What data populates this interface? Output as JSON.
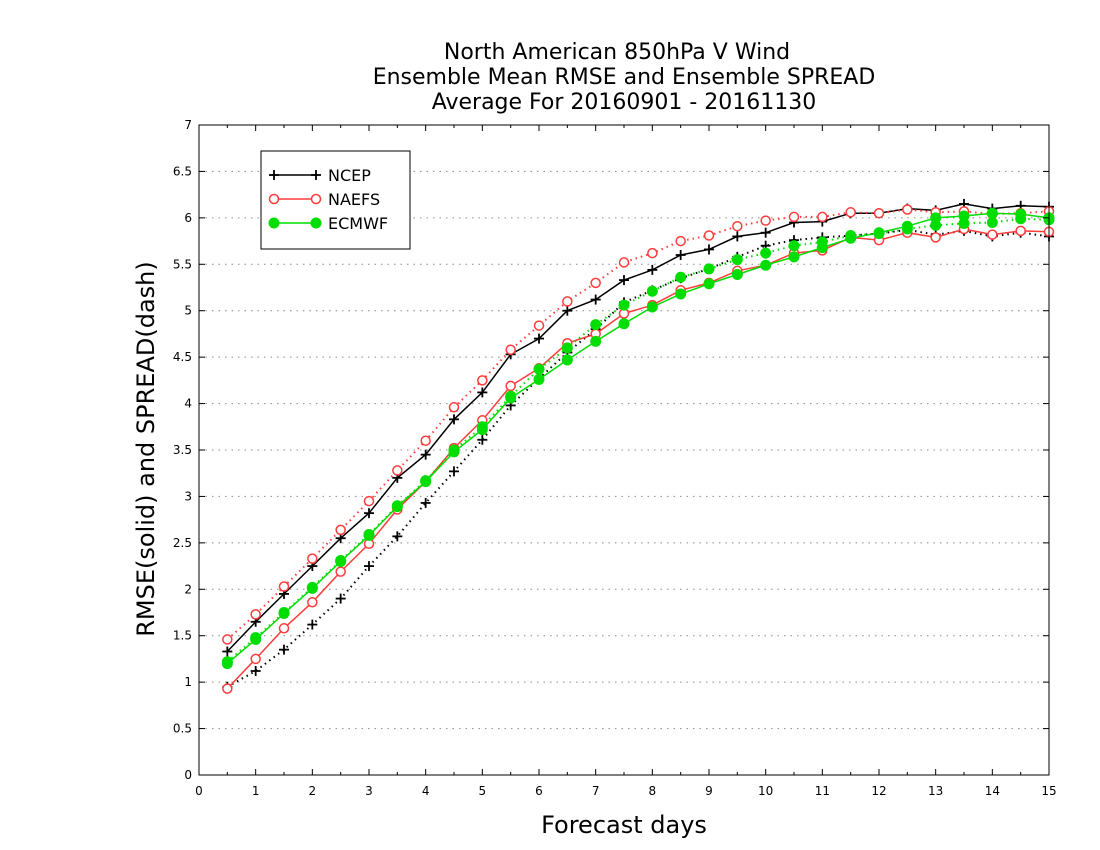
{
  "chart_data": {
    "type": "line",
    "title_lines": [
      "North American 850hPa V Wind",
      "Ensemble Mean RMSE and Ensemble SPREAD",
      "Average For 20160901 - 20161130"
    ],
    "xlabel": "Forecast days",
    "ylabel": "RMSE(solid) and SPREAD(dash)",
    "xlim": [
      0,
      15
    ],
    "ylim": [
      0,
      7
    ],
    "x_ticks": [
      "0",
      "1",
      "2",
      "3",
      "4",
      "5",
      "6",
      "7",
      "8",
      "9",
      "10",
      "11",
      "12",
      "13",
      "14",
      "15"
    ],
    "y_ticks": [
      "0",
      "0.5",
      "1",
      "1.5",
      "2",
      "2.5",
      "3",
      "3.5",
      "4",
      "4.5",
      "5",
      "5.5",
      "6",
      "6.5",
      "7"
    ],
    "grid": "horizontal dotted",
    "legend_position": "top-left",
    "x": [
      0.5,
      1,
      1.5,
      2,
      2.5,
      3,
      3.5,
      4,
      4.5,
      5,
      5.5,
      6,
      6.5,
      7,
      7.5,
      8,
      8.5,
      9,
      9.5,
      10,
      10.5,
      11,
      11.5,
      12,
      12.5,
      13,
      13.5,
      14,
      14.5,
      15
    ],
    "series": [
      {
        "name": "NCEP",
        "color": "#000000",
        "marker": "plus",
        "rmse": [
          1.33,
          1.65,
          1.95,
          2.25,
          2.55,
          2.82,
          3.2,
          3.45,
          3.83,
          4.12,
          4.53,
          4.7,
          5.0,
          5.12,
          5.33,
          5.44,
          5.6,
          5.66,
          5.8,
          5.84,
          5.95,
          5.96,
          6.05,
          6.05,
          6.1,
          6.08,
          6.15,
          6.1,
          6.13,
          6.12
        ],
        "spread": [
          0.95,
          1.12,
          1.35,
          1.62,
          1.9,
          2.25,
          2.57,
          2.93,
          3.27,
          3.61,
          3.98,
          4.27,
          4.55,
          4.8,
          5.09,
          5.22,
          5.35,
          5.45,
          5.58,
          5.7,
          5.76,
          5.79,
          5.81,
          5.83,
          5.87,
          5.82,
          5.86,
          5.8,
          5.84,
          5.8
        ]
      },
      {
        "name": "NAEFS",
        "color": "#ff3b3b",
        "marker": "open-circle",
        "rmse": [
          0.93,
          1.25,
          1.58,
          1.86,
          2.19,
          2.49,
          2.86,
          3.16,
          3.52,
          3.82,
          4.19,
          4.38,
          4.65,
          4.75,
          4.97,
          5.06,
          5.22,
          5.3,
          5.43,
          5.49,
          5.62,
          5.65,
          5.79,
          5.76,
          5.84,
          5.79,
          5.88,
          5.82,
          5.86,
          5.85
        ],
        "spread": [
          1.46,
          1.73,
          2.03,
          2.33,
          2.64,
          2.95,
          3.28,
          3.6,
          3.96,
          4.25,
          4.58,
          4.84,
          5.1,
          5.3,
          5.52,
          5.62,
          5.75,
          5.81,
          5.91,
          5.97,
          6.01,
          6.01,
          6.06,
          6.05,
          6.09,
          6.06,
          6.07,
          6.04,
          6.05,
          6.07
        ]
      },
      {
        "name": "ECMWF",
        "color": "#00dd00",
        "marker": "filled-circle",
        "rmse": [
          1.2,
          1.46,
          1.74,
          2.01,
          2.3,
          2.58,
          2.89,
          3.16,
          3.48,
          3.72,
          4.06,
          4.26,
          4.47,
          4.67,
          4.86,
          5.04,
          5.18,
          5.29,
          5.39,
          5.49,
          5.58,
          5.68,
          5.78,
          5.84,
          5.91,
          6.0,
          6.02,
          6.05,
          6.04,
          6.0
        ],
        "spread": [
          1.22,
          1.48,
          1.75,
          2.02,
          2.31,
          2.59,
          2.9,
          3.17,
          3.5,
          3.75,
          4.08,
          4.37,
          4.6,
          4.85,
          5.06,
          5.21,
          5.36,
          5.45,
          5.55,
          5.62,
          5.7,
          5.74,
          5.81,
          5.83,
          5.88,
          5.92,
          5.94,
          5.95,
          5.99,
          5.98
        ]
      }
    ]
  }
}
